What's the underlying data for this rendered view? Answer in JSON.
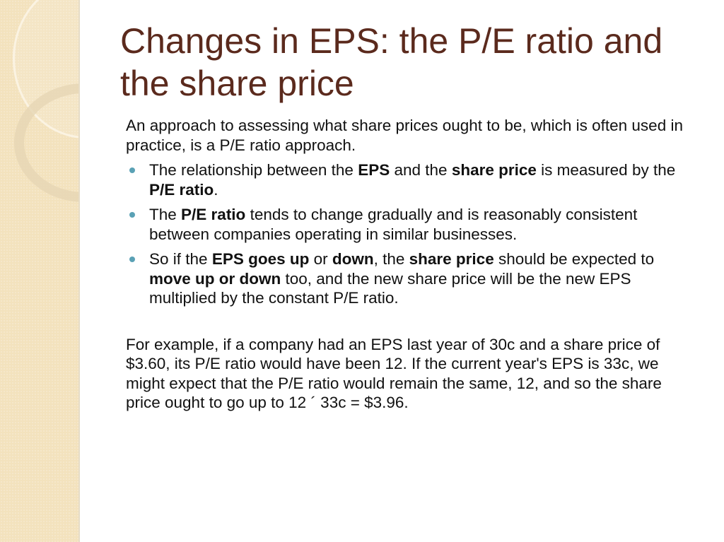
{
  "slide": {
    "title": "Changes in EPS: the P/E ratio and the share price",
    "intro": "An approach to assessing what share prices ought to be, which is often used in practice, is a P/E ratio approach.",
    "bullets": [
      [
        {
          "t": "The relationship between the ",
          "b": false
        },
        {
          "t": "EPS",
          "b": true
        },
        {
          "t": " and the ",
          "b": false
        },
        {
          "t": "share price",
          "b": true
        },
        {
          "t": " is measured by the ",
          "b": false
        },
        {
          "t": "P/E ratio",
          "b": true
        },
        {
          "t": ".",
          "b": false
        }
      ],
      [
        {
          "t": "The ",
          "b": false
        },
        {
          "t": "P/E ratio",
          "b": true
        },
        {
          "t": " tends to change gradually and is reasonably consistent between companies operating in similar businesses.",
          "b": false
        }
      ],
      [
        {
          "t": "So if the ",
          "b": false
        },
        {
          "t": "EPS goes up",
          "b": true
        },
        {
          "t": " or ",
          "b": false
        },
        {
          "t": "down",
          "b": true
        },
        {
          "t": ", the ",
          "b": false
        },
        {
          "t": "share price",
          "b": true
        },
        {
          "t": " should be expected to ",
          "b": false
        },
        {
          "t": "move up or down",
          "b": true
        },
        {
          "t": " too, and the new share price will be the new EPS multiplied by the constant P/E ratio.",
          "b": false
        }
      ]
    ],
    "example": "For example, if a company had an EPS last year of 30c and a share price of $3.60, its P/E ratio would have been 12. If the current year's EPS is 33c, we might expect that the P/E ratio would remain the same, 12, and so the share price ought to go up to 12 ´ 33c = $3.96."
  },
  "colors": {
    "title": "#5b2a1d",
    "bullet": "#5aa1b5",
    "sidebar": "#f3e2bd"
  }
}
